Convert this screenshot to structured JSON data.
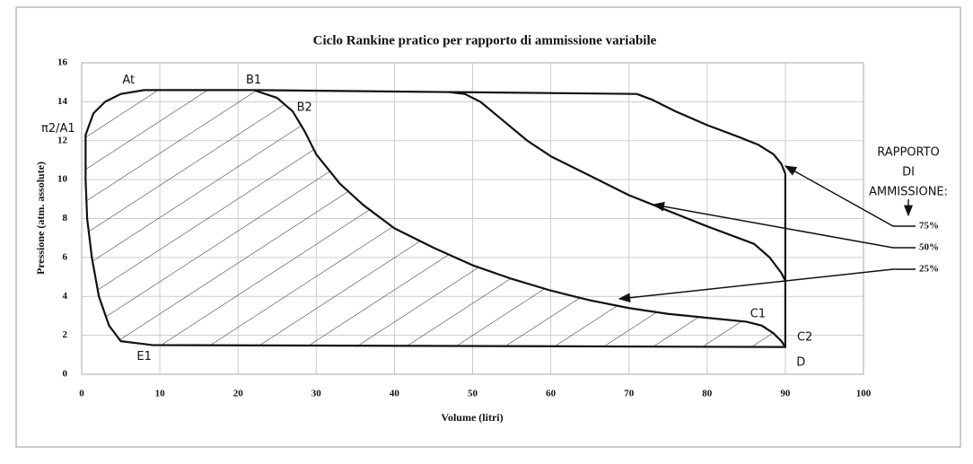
{
  "chart_data": {
    "type": "line",
    "title": "Ciclo Rankine pratico per rapporto di ammissione variabile",
    "xlabel": "Volume (litri)",
    "ylabel": "Pressione (atm. assolute)",
    "xlim": [
      0,
      100
    ],
    "ylim": [
      0,
      16
    ],
    "xticks": [
      0,
      10,
      20,
      30,
      40,
      50,
      60,
      70,
      80,
      90,
      100
    ],
    "yticks": [
      0,
      2,
      4,
      6,
      8,
      10,
      12,
      14,
      16
    ],
    "grid": true,
    "legend_title": [
      "RAPPORTO",
      "DI",
      "AMMISSIONE:"
    ],
    "series": [
      {
        "name": "75%",
        "color": "#111111",
        "x": [
          22,
          71,
          73,
          76,
          80,
          84,
          86.5,
          88.5,
          89.5,
          90,
          90
        ],
        "values": [
          14.6,
          14.4,
          14.1,
          13.5,
          12.8,
          12.2,
          11.8,
          11.3,
          10.8,
          10.3,
          1.4
        ]
      },
      {
        "name": "50%",
        "color": "#111111",
        "x": [
          47,
          49,
          51,
          54,
          57,
          60,
          65,
          70,
          75,
          80,
          84,
          86,
          88,
          89.5,
          90
        ],
        "values": [
          14.5,
          14.4,
          14,
          13,
          12,
          11.2,
          10.2,
          9.2,
          8.4,
          7.6,
          7,
          6.7,
          6,
          5.2,
          4.8
        ]
      },
      {
        "name": "25%",
        "color": "#111111",
        "x": [
          9,
          5,
          3.5,
          2.2,
          1.3,
          0.7,
          0.5,
          0.5,
          1.5,
          3,
          5,
          8,
          22,
          25,
          27,
          28.5,
          30,
          33,
          36,
          40,
          45,
          50,
          55,
          60,
          65,
          70,
          75,
          80,
          85,
          87,
          88.5,
          89.5,
          90,
          9
        ],
        "values": [
          1.5,
          1.7,
          2.5,
          4,
          6,
          8,
          10,
          12.3,
          13.4,
          14,
          14.4,
          14.6,
          14.6,
          14.2,
          13.5,
          12.5,
          11.3,
          9.8,
          8.7,
          7.5,
          6.5,
          5.6,
          4.9,
          4.3,
          3.8,
          3.4,
          3.1,
          2.9,
          2.7,
          2.5,
          2.1,
          1.7,
          1.4,
          1.5
        ]
      }
    ],
    "annotations": [
      "At",
      "B1",
      "B2",
      "π2/A1",
      "C1",
      "C2",
      "D",
      "E1"
    ]
  }
}
